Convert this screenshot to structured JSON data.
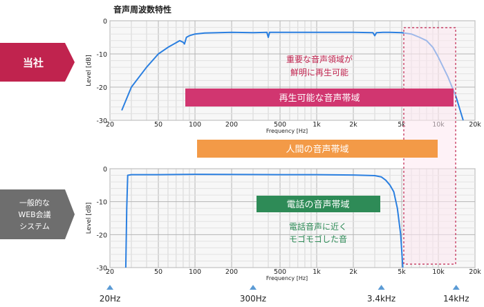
{
  "page": {
    "title": "音声周波数特性",
    "company_label": "当社",
    "web_label_lines": [
      "一般的な",
      "WEB会議",
      "システム"
    ]
  },
  "annotations": {
    "important_lines": [
      "重要な音声領域が",
      "鮮明に再生可能"
    ],
    "reproducible_band": "再生可能な音声帯域",
    "human_band": "人間の音声帯域",
    "phone_band": "電話の音声帯域",
    "phone_note_lines": [
      "電話音声に近く",
      "モゴモゴした音"
    ]
  },
  "markers": [
    {
      "label": "20Hz",
      "freq": 20
    },
    {
      "label": "300Hz",
      "freq": 300
    },
    {
      "label": "3.4kHz",
      "freq": 3400
    },
    {
      "label": "14kHz",
      "freq": 14000
    }
  ],
  "colors": {
    "company": "#c0234e",
    "web": "#6e6e6e",
    "reproducible": "#d13670",
    "human": "#f39a47",
    "phone": "#2e8b57",
    "curve": "#2a7fe0",
    "marker": "#5b9bd5",
    "highlight": "#fde8f1"
  },
  "chart_data": [
    {
      "type": "line",
      "name": "company",
      "xlabel": "Frequency [Hz]",
      "ylabel": "Level [dB]",
      "xscale": "log",
      "xlim": [
        20,
        20000
      ],
      "ylim": [
        -30,
        0
      ],
      "xticks": [
        20,
        50,
        100,
        200,
        500,
        1000,
        2000,
        5000,
        10000,
        20000
      ],
      "xticklabels": [
        "20",
        "50",
        "100",
        "200",
        "500",
        "1k",
        "2k",
        "5k",
        "10k",
        "20k"
      ],
      "yticks": [
        0,
        -10,
        -20,
        -30
      ],
      "yticklabels": [
        "0",
        "-10",
        "-20",
        "-30"
      ],
      "grid": true,
      "series": [
        {
          "x": [
            25,
            30,
            40,
            50,
            60,
            75,
            80,
            82,
            85,
            90,
            100,
            120,
            200,
            300,
            390,
            400,
            410,
            500,
            800,
            1000,
            2000,
            2900,
            3000,
            3100,
            3500,
            4000,
            5000,
            6000,
            7000,
            8000,
            9000,
            10000,
            12000,
            14000,
            16000
          ],
          "y": [
            -27,
            -20,
            -14,
            -10,
            -8,
            -6,
            -6.5,
            -7,
            -5,
            -4.5,
            -4,
            -3.7,
            -3.5,
            -3.6,
            -3.5,
            -5,
            -3.5,
            -3.5,
            -3.5,
            -3.5,
            -3.5,
            -3.6,
            -4.5,
            -3.6,
            -3.5,
            -3.5,
            -3.6,
            -4,
            -5,
            -6,
            -8,
            -11,
            -17,
            -23,
            -30
          ]
        }
      ]
    },
    {
      "type": "line",
      "name": "web",
      "xlabel": "Frequency [Hz]",
      "ylabel": "Level [dB]",
      "xscale": "log",
      "xlim": [
        20,
        20000
      ],
      "ylim": [
        -30,
        0
      ],
      "xticks": [
        20,
        50,
        100,
        200,
        500,
        1000,
        2000,
        5000,
        10000,
        20000
      ],
      "xticklabels": [
        "20",
        "50",
        "100",
        "200",
        "500",
        "1k",
        "2k",
        "5k",
        "10k",
        "20k"
      ],
      "yticks": [
        0,
        -10,
        -20,
        -30
      ],
      "yticklabels": [
        "0",
        "-10",
        "-20",
        "-30"
      ],
      "grid": true,
      "series": [
        {
          "x": [
            27,
            27.5,
            28,
            30,
            50,
            100,
            500,
            1000,
            2000,
            3000,
            3400,
            3700,
            4000,
            4300,
            4600,
            4900,
            5100
          ],
          "y": [
            -30,
            -12,
            -2,
            -1.8,
            -1.8,
            -1.7,
            -1.8,
            -1.8,
            -1.9,
            -2.1,
            -2.5,
            -3.5,
            -5,
            -7,
            -12,
            -20,
            -30
          ]
        }
      ]
    }
  ]
}
